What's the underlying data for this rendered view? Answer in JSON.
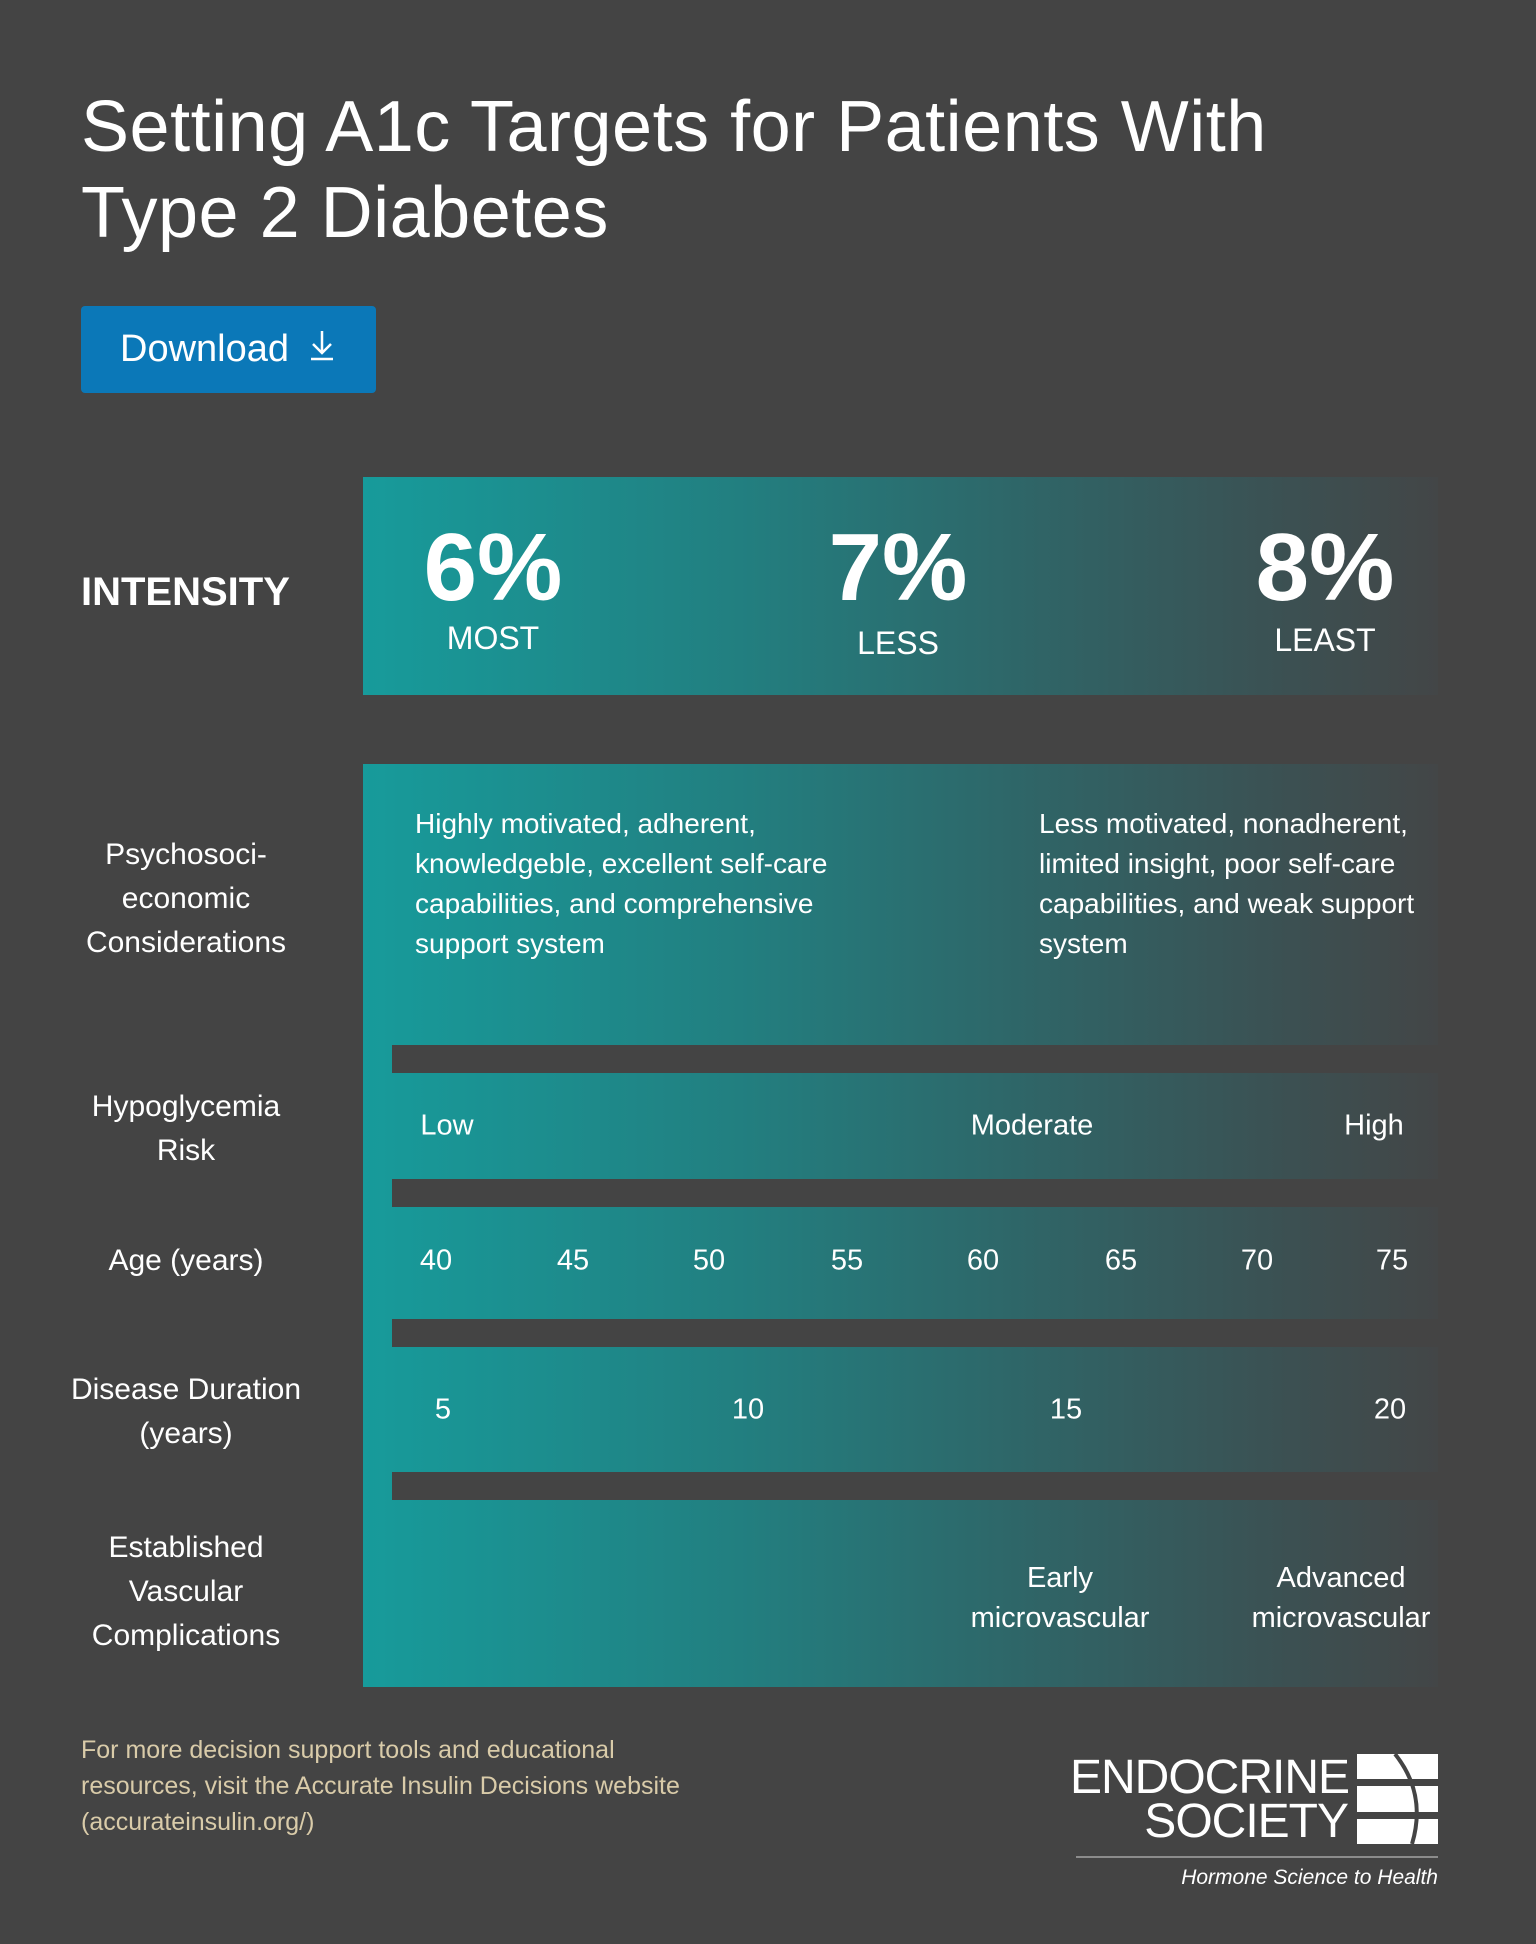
{
  "header": {
    "title_line1": "Setting A1c Targets for Patients With",
    "title_line2": "Type 2 Diabetes",
    "download_label": "Download",
    "download_icon": "download-arrow-icon",
    "accent_color": "#0b78b8"
  },
  "intensity": {
    "label": "INTENSITY",
    "levels": [
      {
        "value": "6%",
        "label": "MOST"
      },
      {
        "value": "7%",
        "label": "LESS"
      },
      {
        "value": "8%",
        "label": "LEAST"
      }
    ],
    "gradient_colors": [
      "#179b9b",
      "#434647"
    ]
  },
  "rows": {
    "psycho": {
      "label_lines": [
        "Psychosoci-",
        "economic",
        "Considerations"
      ],
      "left_text": "Highly motivated, adherent, knowledgeble, excellent self-care capabilities, and comprehensive support system",
      "right_text": "Less motivated, nonadherent, limited insight, poor self-care capabilities, and weak support system"
    },
    "hypo": {
      "label_lines": [
        "Hypoglycemia",
        "Risk"
      ],
      "values": [
        "Low",
        "Moderate",
        "High"
      ]
    },
    "age": {
      "label": "Age (years)",
      "values": [
        "40",
        "45",
        "50",
        "55",
        "60",
        "65",
        "70",
        "75"
      ]
    },
    "duration": {
      "label_lines": [
        "Disease Duration",
        "(years)"
      ],
      "values": [
        "5",
        "10",
        "15",
        "20"
      ]
    },
    "vascular": {
      "label_lines": [
        "Established",
        "Vascular",
        "Complications"
      ],
      "early": [
        "Early",
        "microvascular"
      ],
      "advanced": [
        "Advanced",
        "microvascular"
      ]
    }
  },
  "footer": {
    "text_lines": [
      "For more decision support tools and educational",
      "resources, visit the Accurate Insulin Decisions website",
      "(accurateinsulin.org/)"
    ],
    "logo_line1": "ENDOCRINE",
    "logo_line2": "SOCIETY",
    "tagline": "Hormone Science to Health"
  }
}
